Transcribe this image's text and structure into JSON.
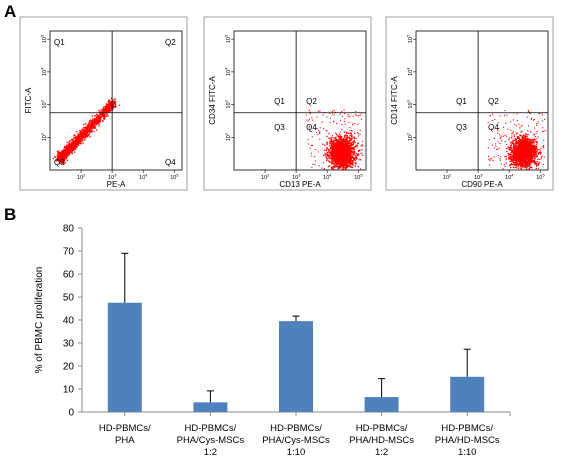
{
  "panel_labels": {
    "a": "A",
    "b": "B"
  },
  "chart_data": [
    {
      "type": "scatter",
      "panel": "A",
      "xlabel": "PE-A",
      "ylabel": "FITC-A",
      "quadrant_labels": [
        "Q1",
        "Q2",
        "Q3",
        "Q4"
      ],
      "log_scale": true,
      "x_ticks": [
        "10^2",
        "10^3",
        "10^4",
        "10^5"
      ],
      "y_ticks": [
        "10^2",
        "10^3",
        "10^4",
        "10^5"
      ],
      "population": "diagonal",
      "color": "#ff0000"
    },
    {
      "type": "scatter",
      "panel": "A",
      "xlabel": "CD13 PE-A",
      "ylabel": "CD34 FITC-A",
      "quadrant_labels": [
        "Q1",
        "Q2",
        "Q3",
        "Q4"
      ],
      "log_scale": true,
      "x_ticks": [
        "10^2",
        "10^3",
        "10^4",
        "10^5"
      ],
      "y_ticks": [
        "10^2",
        "10^3",
        "10^4",
        "10^5"
      ],
      "population": "Q4",
      "color": "#ff0000"
    },
    {
      "type": "scatter",
      "panel": "A",
      "xlabel": "CD90 PE-A",
      "ylabel": "CD14 FITC-A",
      "quadrant_labels": [
        "Q1",
        "Q2",
        "Q3",
        "Q4"
      ],
      "log_scale": true,
      "x_ticks": [
        "10^2",
        "10^3",
        "10^4",
        "10^5"
      ],
      "y_ticks": [
        "10^2",
        "10^3",
        "10^4",
        "10^5"
      ],
      "population": "Q4",
      "color": "#ff0000"
    },
    {
      "type": "bar",
      "panel": "B",
      "categories": [
        [
          "HD-PBMCs/",
          "PHA"
        ],
        [
          "HD-PBMCs/",
          "PHA/Cys-MSCs",
          "1:2"
        ],
        [
          "HD-PBMCs/",
          "PHA/Cys-MSCs",
          "1:10"
        ],
        [
          "HD-PBMCs/",
          "PHA/HD-MSCs",
          "1:2"
        ],
        [
          "HD-PBMCs/",
          "PHA/HD-MSCs",
          "1:10"
        ]
      ],
      "values": [
        47.5,
        4.2,
        39.5,
        6.5,
        15.3
      ],
      "errors": [
        21.5,
        5.0,
        2.2,
        8.0,
        12.0
      ],
      "ylabel": "% of PBMC proliferation",
      "ylim": [
        0,
        80
      ],
      "yticks": [
        0,
        10,
        20,
        30,
        40,
        50,
        60,
        70,
        80
      ],
      "bar_color": "#4f81bd"
    }
  ]
}
